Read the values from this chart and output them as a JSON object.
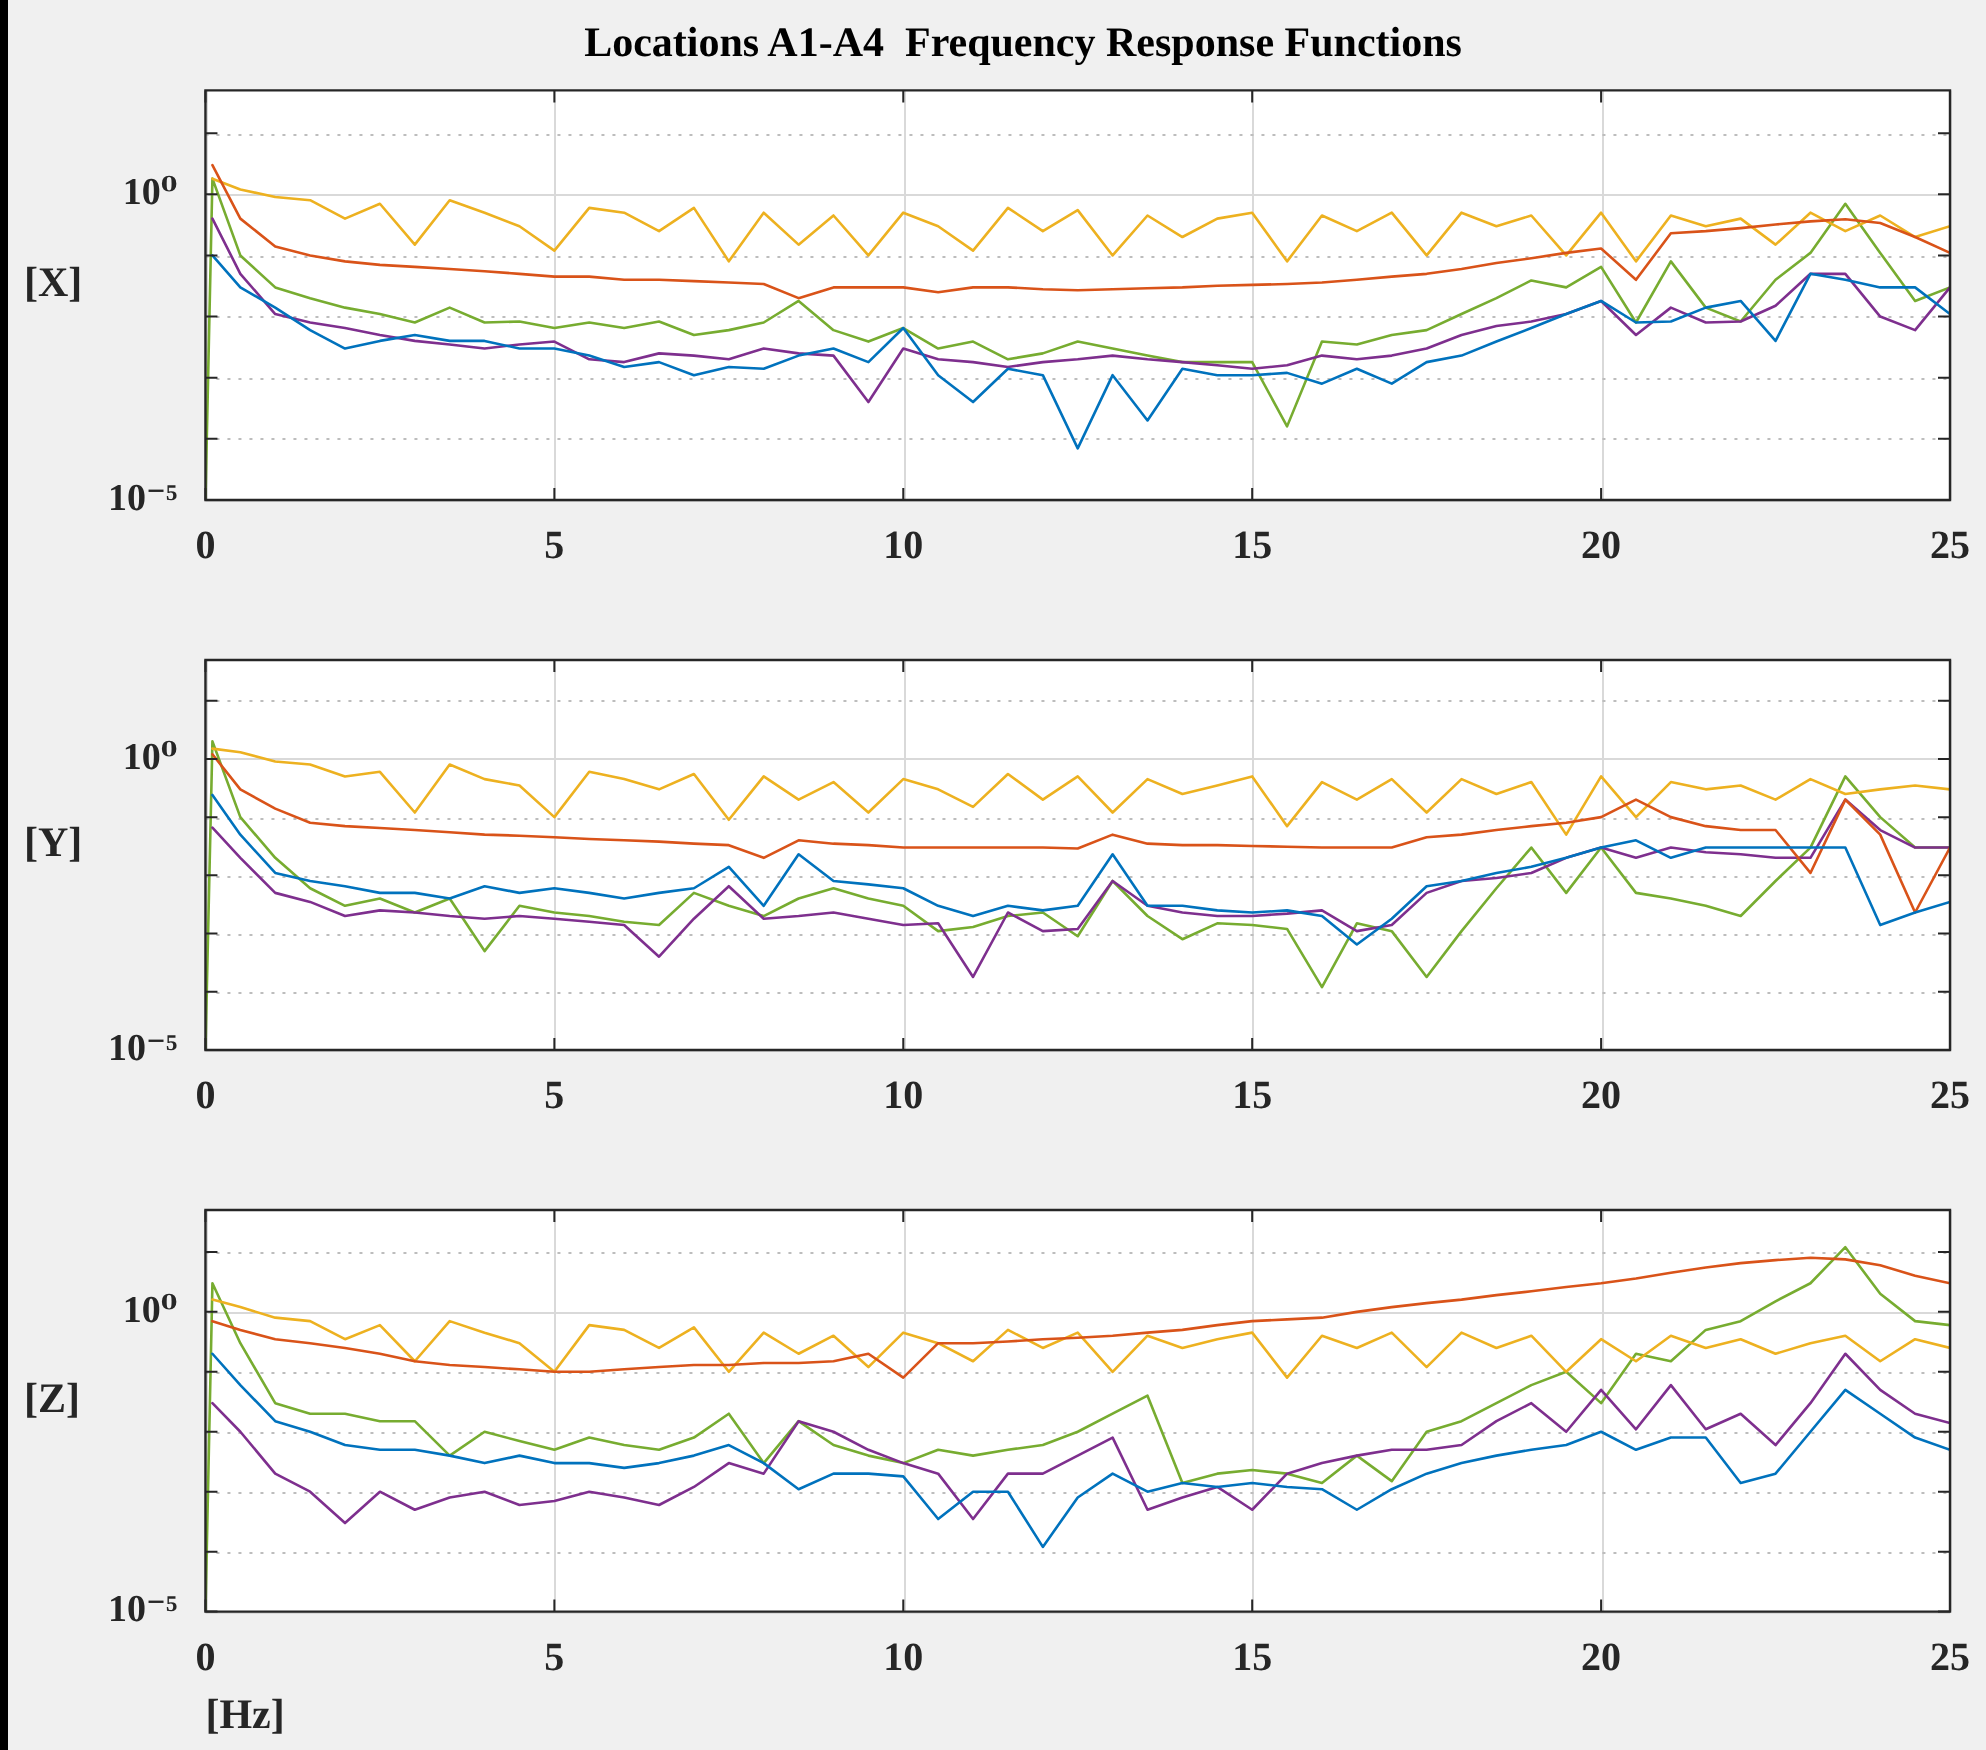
{
  "chart_data": [
    {
      "type": "line",
      "title": "Locations A1-A4  Frequency Response Functions",
      "ylabel": "[X]",
      "log": "y",
      "grid": true,
      "marker": "none",
      "legend": false,
      "xlim": [
        0,
        25
      ],
      "xticks": [
        0,
        5,
        10,
        15,
        20,
        25
      ],
      "ylim": [
        1e-05,
        50
      ],
      "yticks": [
        {
          "value": 1e-05,
          "label": "10⁻⁵"
        },
        {
          "value": 0.0001,
          "label": null
        },
        {
          "value": 0.001,
          "label": null
        },
        {
          "value": 0.01,
          "label": null
        },
        {
          "value": 0.1,
          "label": null
        },
        {
          "value": 1,
          "label": "10⁰"
        },
        {
          "value": 10,
          "label": null
        }
      ],
      "x": [
        0,
        0.1,
        0.5,
        1,
        1.5,
        2,
        2.5,
        3,
        3.5,
        4,
        4.5,
        5,
        5.5,
        6,
        6.5,
        7,
        7.5,
        8,
        8.5,
        9,
        9.5,
        10,
        10.5,
        11,
        11.5,
        12,
        12.5,
        13,
        13.5,
        14,
        14.5,
        15,
        15.5,
        16,
        16.5,
        17,
        17.5,
        18,
        18.5,
        19,
        19.5,
        20,
        20.5,
        21,
        21.5,
        22,
        22.5,
        23,
        23.5,
        24,
        24.5,
        25
      ],
      "series": [
        {
          "color": "#0072bd",
          "values": [
            null,
            0.1,
            0.03,
            0.014,
            0.006,
            0.003,
            0.004,
            0.005,
            0.004,
            0.004,
            0.003,
            0.003,
            0.0023,
            0.0015,
            0.0018,
            0.0011,
            0.0015,
            0.0014,
            0.0023,
            0.003,
            0.0018,
            0.0065,
            0.0011,
            0.0004,
            0.0014,
            0.0011,
            7e-05,
            0.0011,
            0.0002,
            0.0014,
            0.0011,
            0.0011,
            0.0012,
            0.0008,
            0.0014,
            0.0008,
            0.0018,
            0.0023,
            0.0039,
            0.0065,
            0.011,
            0.018,
            0.008,
            0.0083,
            0.014,
            0.018,
            0.004,
            0.05,
            0.04,
            0.03,
            0.03,
            0.011
          ]
        },
        {
          "color": "#d95319",
          "values": [
            null,
            3,
            0.4,
            0.14,
            0.1,
            0.08,
            0.07,
            0.065,
            0.06,
            0.055,
            0.05,
            0.045,
            0.045,
            0.04,
            0.04,
            0.038,
            0.036,
            0.034,
            0.02,
            0.03,
            0.03,
            0.03,
            0.025,
            0.03,
            0.03,
            0.028,
            0.027,
            0.028,
            0.029,
            0.03,
            0.032,
            0.033,
            0.034,
            0.036,
            0.04,
            0.045,
            0.05,
            0.06,
            0.075,
            0.09,
            0.11,
            0.13,
            0.04,
            0.23,
            0.25,
            0.28,
            0.32,
            0.36,
            0.39,
            0.34,
            0.2,
            0.11
          ]
        },
        {
          "color": "#edb120",
          "values": [
            null,
            1.8,
            1.2,
            0.9,
            0.8,
            0.4,
            0.7,
            0.15,
            0.8,
            0.5,
            0.3,
            0.12,
            0.6,
            0.5,
            0.25,
            0.6,
            0.08,
            0.5,
            0.15,
            0.45,
            0.1,
            0.5,
            0.3,
            0.12,
            0.6,
            0.25,
            0.55,
            0.1,
            0.45,
            0.2,
            0.4,
            0.5,
            0.08,
            0.45,
            0.25,
            0.5,
            0.1,
            0.5,
            0.3,
            0.45,
            0.1,
            0.5,
            0.08,
            0.45,
            0.3,
            0.4,
            0.15,
            0.5,
            0.25,
            0.45,
            0.2,
            0.3
          ]
        },
        {
          "color": "#7e2f8e",
          "values": [
            null,
            0.4,
            0.05,
            0.011,
            0.008,
            0.0065,
            0.005,
            0.004,
            0.0035,
            0.003,
            0.0035,
            0.0039,
            0.002,
            0.0018,
            0.0025,
            0.0023,
            0.002,
            0.003,
            0.0025,
            0.0023,
            0.0004,
            0.003,
            0.002,
            0.0018,
            0.0015,
            0.0018,
            0.002,
            0.0023,
            0.002,
            0.0018,
            0.0016,
            0.0014,
            0.0016,
            0.0023,
            0.002,
            0.0023,
            0.003,
            0.005,
            0.007,
            0.0083,
            0.011,
            0.018,
            0.005,
            0.014,
            0.008,
            0.0083,
            0.015,
            0.05,
            0.05,
            0.01,
            0.006,
            0.03
          ]
        },
        {
          "color": "#77ac30",
          "values": [
            1e-05,
            1.8,
            0.1,
            0.03,
            0.02,
            0.014,
            0.011,
            0.008,
            0.014,
            0.008,
            0.0083,
            0.0065,
            0.008,
            0.0065,
            0.0083,
            0.005,
            0.006,
            0.008,
            0.018,
            0.006,
            0.0039,
            0.0065,
            0.003,
            0.0039,
            0.002,
            0.0025,
            0.0039,
            0.003,
            0.0023,
            0.0018,
            0.0018,
            0.0018,
            0.00016,
            0.0039,
            0.0035,
            0.005,
            0.006,
            0.011,
            0.02,
            0.039,
            0.03,
            0.065,
            0.008,
            0.08,
            0.014,
            0.0083,
            0.04,
            0.11,
            0.7,
            0.11,
            0.018,
            0.03
          ]
        }
      ]
    },
    {
      "type": "line",
      "ylabel": "[Y]",
      "log": "y",
      "grid": true,
      "marker": "none",
      "legend": false,
      "xlim": [
        0,
        25
      ],
      "xticks": [
        0,
        5,
        10,
        15,
        20,
        25
      ],
      "ylim": [
        1e-05,
        50
      ],
      "yticks": [
        {
          "value": 1e-05,
          "label": "10⁻⁵"
        },
        {
          "value": 0.0001,
          "label": null
        },
        {
          "value": 0.001,
          "label": null
        },
        {
          "value": 0.01,
          "label": null
        },
        {
          "value": 0.1,
          "label": null
        },
        {
          "value": 1,
          "label": "10⁰"
        },
        {
          "value": 10,
          "label": null
        }
      ],
      "x": [
        0,
        0.1,
        0.5,
        1,
        1.5,
        2,
        2.5,
        3,
        3.5,
        4,
        4.5,
        5,
        5.5,
        6,
        6.5,
        7,
        7.5,
        8,
        8.5,
        9,
        9.5,
        10,
        10.5,
        11,
        11.5,
        12,
        12.5,
        13,
        13.5,
        14,
        14.5,
        15,
        15.5,
        16,
        16.5,
        17,
        17.5,
        18,
        18.5,
        19,
        19.5,
        20,
        20.5,
        21,
        21.5,
        22,
        22.5,
        23,
        23.5,
        24,
        24.5,
        25
      ],
      "series": [
        {
          "color": "#0072bd",
          "values": [
            null,
            0.24,
            0.05,
            0.011,
            0.008,
            0.0065,
            0.005,
            0.005,
            0.004,
            0.0065,
            0.005,
            0.006,
            0.005,
            0.004,
            0.005,
            0.006,
            0.014,
            0.003,
            0.023,
            0.008,
            0.007,
            0.006,
            0.003,
            0.002,
            0.003,
            0.0025,
            0.003,
            0.023,
            0.003,
            0.003,
            0.0025,
            0.0023,
            0.0025,
            0.002,
            0.00065,
            0.0018,
            0.0065,
            0.008,
            0.011,
            0.014,
            0.02,
            0.03,
            0.04,
            0.02,
            0.03,
            0.03,
            0.03,
            0.03,
            0.03,
            0.0014,
            0.0023,
            0.0035
          ]
        },
        {
          "color": "#d95319",
          "values": [
            null,
            1.2,
            0.3,
            0.14,
            0.08,
            0.07,
            0.065,
            0.06,
            0.055,
            0.05,
            0.048,
            0.045,
            0.042,
            0.04,
            0.038,
            0.035,
            0.033,
            0.02,
            0.04,
            0.035,
            0.033,
            0.03,
            0.03,
            0.03,
            0.03,
            0.03,
            0.029,
            0.05,
            0.035,
            0.033,
            0.033,
            0.032,
            0.031,
            0.03,
            0.03,
            0.03,
            0.045,
            0.05,
            0.06,
            0.07,
            0.08,
            0.1,
            0.2,
            0.1,
            0.07,
            0.06,
            0.06,
            0.011,
            0.2,
            0.05,
            0.0023,
            0.03
          ]
        },
        {
          "color": "#edb120",
          "values": [
            null,
            1.5,
            1.3,
            0.9,
            0.8,
            0.5,
            0.6,
            0.12,
            0.8,
            0.45,
            0.35,
            0.1,
            0.6,
            0.45,
            0.3,
            0.55,
            0.09,
            0.5,
            0.2,
            0.4,
            0.12,
            0.45,
            0.3,
            0.15,
            0.55,
            0.2,
            0.5,
            0.12,
            0.45,
            0.25,
            0.35,
            0.5,
            0.07,
            0.4,
            0.2,
            0.45,
            0.12,
            0.45,
            0.25,
            0.4,
            0.05,
            0.5,
            0.1,
            0.4,
            0.3,
            0.35,
            0.2,
            0.45,
            0.25,
            0.3,
            0.35,
            0.3
          ]
        },
        {
          "color": "#7e2f8e",
          "values": [
            null,
            0.066,
            0.02,
            0.005,
            0.0035,
            0.002,
            0.0025,
            0.0023,
            0.002,
            0.0018,
            0.002,
            0.0018,
            0.0016,
            0.0014,
            0.0004,
            0.0018,
            0.0065,
            0.0018,
            0.002,
            0.0023,
            0.0018,
            0.0014,
            0.0015,
            0.00018,
            0.0023,
            0.0011,
            0.0012,
            0.008,
            0.003,
            0.0023,
            0.002,
            0.002,
            0.0022,
            0.0025,
            0.0011,
            0.0014,
            0.005,
            0.008,
            0.009,
            0.011,
            0.02,
            0.03,
            0.02,
            0.03,
            0.025,
            0.023,
            0.02,
            0.02,
            0.2,
            0.06,
            0.03,
            0.03
          ]
        },
        {
          "color": "#77ac30",
          "values": [
            1e-05,
            2,
            0.1,
            0.02,
            0.006,
            0.003,
            0.004,
            0.0023,
            0.004,
            0.0005,
            0.003,
            0.0023,
            0.002,
            0.0016,
            0.0014,
            0.005,
            0.003,
            0.002,
            0.004,
            0.006,
            0.004,
            0.003,
            0.0011,
            0.0013,
            0.002,
            0.0023,
            0.0009,
            0.008,
            0.002,
            0.0008,
            0.0015,
            0.0014,
            0.0012,
            0.00012,
            0.0015,
            0.0011,
            0.00018,
            0.0011,
            0.006,
            0.03,
            0.005,
            0.03,
            0.005,
            0.004,
            0.003,
            0.002,
            0.008,
            0.03,
            0.5,
            0.1,
            0.03,
            0.03
          ]
        }
      ]
    },
    {
      "type": "line",
      "ylabel": "[Z]",
      "xlabel": "[Hz]",
      "log": "y",
      "grid": true,
      "marker": "none",
      "legend": false,
      "xlim": [
        0,
        25
      ],
      "xticks": [
        0,
        5,
        10,
        15,
        20,
        25
      ],
      "ylim": [
        1e-05,
        50
      ],
      "yticks": [
        {
          "value": 1e-05,
          "label": "10⁻⁵"
        },
        {
          "value": 0.0001,
          "label": null
        },
        {
          "value": 0.001,
          "label": null
        },
        {
          "value": 0.01,
          "label": null
        },
        {
          "value": 0.1,
          "label": null
        },
        {
          "value": 1,
          "label": "10⁰"
        },
        {
          "value": 10,
          "label": null
        }
      ],
      "x": [
        0,
        0.1,
        0.5,
        1,
        1.5,
        2,
        2.5,
        3,
        3.5,
        4,
        4.5,
        5,
        5.5,
        6,
        6.5,
        7,
        7.5,
        8,
        8.5,
        9,
        9.5,
        10,
        10.5,
        11,
        11.5,
        12,
        12.5,
        13,
        13.5,
        14,
        14.5,
        15,
        15.5,
        16,
        16.5,
        17,
        17.5,
        18,
        18.5,
        19,
        19.5,
        20,
        20.5,
        21,
        21.5,
        22,
        22.5,
        23,
        23.5,
        24,
        24.5,
        25
      ],
      "series": [
        {
          "color": "#0072bd",
          "values": [
            null,
            0.2,
            0.06,
            0.015,
            0.01,
            0.006,
            0.005,
            0.005,
            0.004,
            0.003,
            0.004,
            0.003,
            0.003,
            0.0025,
            0.003,
            0.004,
            0.006,
            0.003,
            0.0011,
            0.002,
            0.002,
            0.0018,
            0.00035,
            0.001,
            0.001,
            0.00012,
            0.0008,
            0.002,
            0.001,
            0.0014,
            0.0012,
            0.0014,
            0.0012,
            0.0011,
            0.0005,
            0.0011,
            0.002,
            0.003,
            0.004,
            0.005,
            0.006,
            0.01,
            0.005,
            0.008,
            0.008,
            0.0014,
            0.002,
            0.01,
            0.05,
            0.02,
            0.008,
            0.005
          ]
        },
        {
          "color": "#d95319",
          "values": [
            null,
            0.7,
            0.5,
            0.35,
            0.3,
            0.25,
            0.2,
            0.15,
            0.13,
            0.12,
            0.11,
            0.1,
            0.1,
            0.11,
            0.12,
            0.13,
            0.13,
            0.14,
            0.14,
            0.15,
            0.2,
            0.08,
            0.3,
            0.3,
            0.32,
            0.35,
            0.37,
            0.4,
            0.45,
            0.5,
            0.6,
            0.7,
            0.75,
            0.8,
            1,
            1.2,
            1.4,
            1.6,
            1.9,
            2.2,
            2.6,
            3,
            3.6,
            4.5,
            5.5,
            6.5,
            7.3,
            8,
            7.5,
            6,
            4,
            3
          ]
        },
        {
          "color": "#edb120",
          "values": [
            null,
            1.6,
            1.2,
            0.8,
            0.7,
            0.35,
            0.6,
            0.15,
            0.7,
            0.45,
            0.3,
            0.1,
            0.6,
            0.5,
            0.25,
            0.55,
            0.1,
            0.45,
            0.2,
            0.4,
            0.12,
            0.45,
            0.3,
            0.15,
            0.5,
            0.25,
            0.45,
            0.1,
            0.4,
            0.25,
            0.35,
            0.45,
            0.08,
            0.4,
            0.25,
            0.45,
            0.12,
            0.45,
            0.25,
            0.4,
            0.1,
            0.35,
            0.15,
            0.4,
            0.25,
            0.35,
            0.2,
            0.3,
            0.4,
            0.15,
            0.35,
            0.25
          ]
        },
        {
          "color": "#7e2f8e",
          "values": [
            null,
            0.03,
            0.01,
            0.002,
            0.001,
            0.0003,
            0.001,
            0.0005,
            0.0008,
            0.001,
            0.0006,
            0.0007,
            0.001,
            0.0008,
            0.0006,
            0.0012,
            0.003,
            0.002,
            0.015,
            0.01,
            0.005,
            0.003,
            0.002,
            0.00035,
            0.002,
            0.002,
            0.004,
            0.008,
            0.0005,
            0.0008,
            0.0012,
            0.0005,
            0.002,
            0.003,
            0.004,
            0.005,
            0.005,
            0.006,
            0.015,
            0.03,
            0.01,
            0.05,
            0.011,
            0.06,
            0.011,
            0.02,
            0.006,
            0.03,
            0.2,
            0.05,
            0.02,
            0.014
          ]
        },
        {
          "color": "#77ac30",
          "values": [
            1e-05,
            3,
            0.3,
            0.03,
            0.02,
            0.02,
            0.015,
            0.015,
            0.004,
            0.01,
            0.007,
            0.005,
            0.008,
            0.006,
            0.005,
            0.008,
            0.02,
            0.003,
            0.015,
            0.006,
            0.004,
            0.003,
            0.005,
            0.004,
            0.005,
            0.006,
            0.01,
            0.02,
            0.04,
            0.0014,
            0.002,
            0.0023,
            0.002,
            0.0014,
            0.004,
            0.0015,
            0.01,
            0.015,
            0.03,
            0.06,
            0.1,
            0.03,
            0.2,
            0.15,
            0.5,
            0.7,
            1.5,
            3,
            12,
            2,
            0.7,
            0.6
          ]
        }
      ]
    }
  ]
}
